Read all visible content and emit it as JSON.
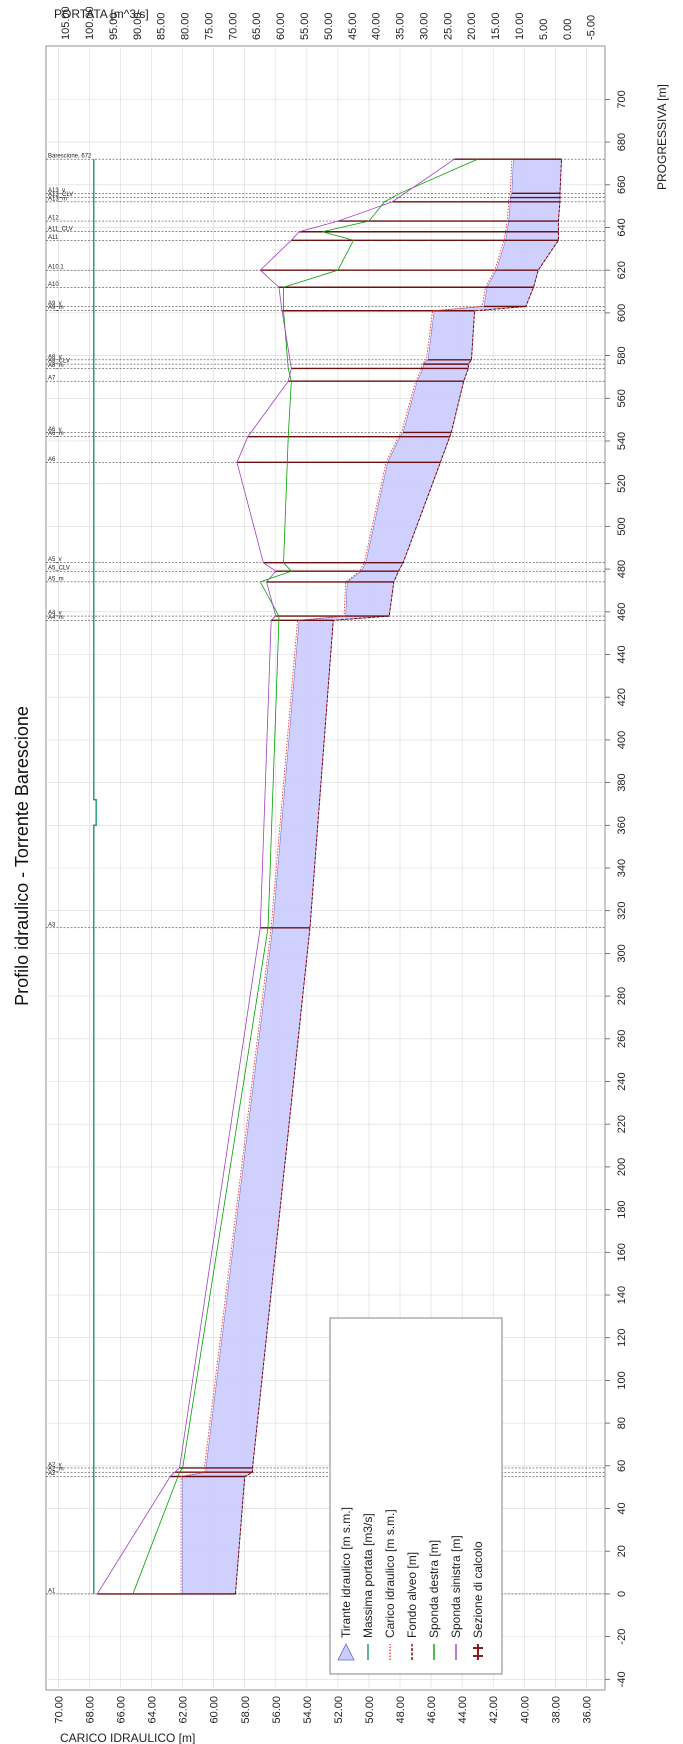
{
  "chart_data": {
    "type": "line",
    "title": "Profilo idraulico - Torrente Barescione",
    "xlabel": "PROGRESSIVA [m]",
    "ylabel": "CARICO IDRAULICO [m]",
    "y2label": "PORTATA [m^3/s]",
    "xlim": [
      -45,
      725
    ],
    "ylim": [
      34.8,
      70.8
    ],
    "y2lim": [
      -8,
      109
    ],
    "x_ticks": [
      "-40",
      "-20",
      "0",
      "20",
      "40",
      "60",
      "80",
      "100",
      "120",
      "140",
      "160",
      "180",
      "200",
      "220",
      "240",
      "260",
      "280",
      "300",
      "320",
      "340",
      "360",
      "380",
      "400",
      "420",
      "440",
      "460",
      "480",
      "500",
      "520",
      "540",
      "560",
      "580",
      "600",
      "620",
      "640",
      "660",
      "680",
      "700"
    ],
    "y_ticks": [
      "36.00",
      "38.00",
      "40.00",
      "42.00",
      "44.00",
      "46.00",
      "48.00",
      "50.00",
      "52.00",
      "54.00",
      "56.00",
      "58.00",
      "60.00",
      "62.00",
      "64.00",
      "66.00",
      "68.00",
      "70.00"
    ],
    "y2_ticks": [
      "-5.00",
      "0.00",
      "5.00",
      "10.00",
      "15.00",
      "20.00",
      "25.00",
      "30.00",
      "35.00",
      "40.00",
      "45.00",
      "50.00",
      "55.00",
      "60.00",
      "65.00",
      "70.00",
      "75.00",
      "80.00",
      "85.00",
      "90.00",
      "95.00",
      "100.00",
      "105.00"
    ],
    "sections": [
      {
        "label": "A1",
        "x": 0
      },
      {
        "label": "A2",
        "x": 55
      },
      {
        "label": "A2_m",
        "x": 57
      },
      {
        "label": "A2_v",
        "x": 59
      },
      {
        "label": "A3",
        "x": 312
      },
      {
        "label": "A4_m",
        "x": 456
      },
      {
        "label": "A4_v",
        "x": 458
      },
      {
        "label": "A5_m",
        "x": 474
      },
      {
        "label": "A5_CLV",
        "x": 479
      },
      {
        "label": "A5_v",
        "x": 483
      },
      {
        "label": "A6",
        "x": 530
      },
      {
        "label": "A6_m",
        "x": 542
      },
      {
        "label": "A6_v",
        "x": 544
      },
      {
        "label": "A7",
        "x": 568
      },
      {
        "label": "A8_m",
        "x": 574
      },
      {
        "label": "A8_CLV",
        "x": 576
      },
      {
        "label": "A8_v",
        "x": 578
      },
      {
        "label": "A9_m",
        "x": 601
      },
      {
        "label": "A9_v",
        "x": 603
      },
      {
        "label": "A10",
        "x": 612
      },
      {
        "label": "A10.1",
        "x": 620
      },
      {
        "label": "A11",
        "x": 634
      },
      {
        "label": "A11_CLV",
        "x": 638
      },
      {
        "label": "A12",
        "x": 643
      },
      {
        "label": "A13_m",
        "x": 652
      },
      {
        "label": "A13_CLV",
        "x": 654
      },
      {
        "label": "A13_v",
        "x": 656
      },
      {
        "label": "Barescione, 672",
        "x": 672
      }
    ],
    "series": [
      {
        "name": "Tirante idraulico [m s.m.]",
        "color": "#aaaaff",
        "points": [
          [
            0,
            62
          ],
          [
            55,
            62
          ],
          [
            57,
            60.5
          ],
          [
            59,
            60.5
          ],
          [
            312,
            56.2
          ],
          [
            456,
            54.5
          ],
          [
            458,
            51.5
          ],
          [
            474,
            51.4
          ],
          [
            479,
            50.5
          ],
          [
            483,
            50.2
          ],
          [
            530,
            48.8
          ],
          [
            542,
            48
          ],
          [
            544,
            47.8
          ],
          [
            568,
            46.9
          ],
          [
            574,
            46.5
          ],
          [
            576,
            46.5
          ],
          [
            578,
            46.2
          ],
          [
            601,
            45.8
          ],
          [
            603,
            42.6
          ],
          [
            612,
            42.4
          ],
          [
            620,
            41.8
          ],
          [
            634,
            41.2
          ],
          [
            638,
            41.1
          ],
          [
            643,
            41
          ],
          [
            652,
            40.9
          ],
          [
            654,
            40.9
          ],
          [
            656,
            40.8
          ],
          [
            672,
            40.7
          ]
        ]
      },
      {
        "name": "Massima portata [m3/s]",
        "color": "#1a9a6c",
        "points": [
          [
            0,
            99
          ],
          [
            360,
            99
          ],
          [
            360,
            98.5
          ],
          [
            372,
            98.5
          ],
          [
            372,
            99
          ],
          [
            672,
            99
          ]
        ]
      },
      {
        "name": "Carico idraulico [m s.m.]",
        "color": "#ff3333",
        "points": [
          [
            0,
            62.1
          ],
          [
            55,
            62.1
          ],
          [
            57,
            60.6
          ],
          [
            59,
            60.6
          ],
          [
            312,
            56.3
          ],
          [
            456,
            54.6
          ],
          [
            458,
            51.6
          ],
          [
            474,
            51.5
          ],
          [
            479,
            50.6
          ],
          [
            483,
            50.3
          ],
          [
            530,
            48.9
          ],
          [
            542,
            48.1
          ],
          [
            544,
            47.9
          ],
          [
            568,
            47
          ],
          [
            574,
            46.6
          ],
          [
            576,
            46.6
          ],
          [
            578,
            46.3
          ],
          [
            601,
            45.9
          ],
          [
            603,
            42.7
          ],
          [
            612,
            42.5
          ],
          [
            620,
            41.9
          ],
          [
            634,
            41.3
          ],
          [
            638,
            41.2
          ],
          [
            643,
            41.1
          ],
          [
            652,
            41
          ],
          [
            654,
            41
          ],
          [
            656,
            40.9
          ],
          [
            672,
            40.8
          ]
        ]
      },
      {
        "name": "Fondo alveo [m]",
        "color": "#8b0000",
        "points": [
          [
            0,
            58.6
          ],
          [
            55,
            58
          ],
          [
            57,
            57.5
          ],
          [
            59,
            57.5
          ],
          [
            312,
            53.8
          ],
          [
            456,
            52.3
          ],
          [
            458,
            48.7
          ],
          [
            474,
            48.4
          ],
          [
            479,
            48.1
          ],
          [
            483,
            47.8
          ],
          [
            530,
            45.4
          ],
          [
            542,
            44.8
          ],
          [
            544,
            44.7
          ],
          [
            568,
            43.9
          ],
          [
            574,
            43.6
          ],
          [
            576,
            43.6
          ],
          [
            578,
            43.4
          ],
          [
            601,
            43.2
          ],
          [
            603,
            39.9
          ],
          [
            612,
            39.4
          ],
          [
            620,
            39.1
          ],
          [
            634,
            37.8
          ],
          [
            638,
            37.8
          ],
          [
            643,
            37.8
          ],
          [
            652,
            37.7
          ],
          [
            654,
            37.7
          ],
          [
            656,
            37.7
          ],
          [
            672,
            37.6
          ]
        ]
      },
      {
        "name": "Sponda destra [m]",
        "color": "#00a000",
        "points": [
          [
            0,
            65.2
          ],
          [
            55,
            62.3
          ],
          [
            57,
            62.2
          ],
          [
            59,
            62
          ],
          [
            312,
            56.5
          ],
          [
            456,
            55.8
          ],
          [
            458,
            55.8
          ],
          [
            474,
            57
          ],
          [
            479,
            55
          ],
          [
            483,
            55.5
          ],
          [
            542,
            55.2
          ],
          [
            568,
            55
          ],
          [
            574,
            55.2
          ],
          [
            601,
            55.5
          ],
          [
            612,
            55.5
          ],
          [
            620,
            52
          ],
          [
            634,
            51
          ],
          [
            638,
            53
          ],
          [
            643,
            50
          ],
          [
            652,
            49
          ],
          [
            656,
            48
          ],
          [
            672,
            43
          ]
        ]
      },
      {
        "name": "Sponda sinistra [m]",
        "color": "#a040c0",
        "points": [
          [
            0,
            67.5
          ],
          [
            55,
            62.8
          ],
          [
            57,
            62.5
          ],
          [
            59,
            62.2
          ],
          [
            312,
            57
          ],
          [
            456,
            56.3
          ],
          [
            458,
            56
          ],
          [
            474,
            56.6
          ],
          [
            479,
            56
          ],
          [
            483,
            56.8
          ],
          [
            530,
            58.5
          ],
          [
            542,
            57.8
          ],
          [
            568,
            55.2
          ],
          [
            574,
            55
          ],
          [
            601,
            55.6
          ],
          [
            612,
            55.8
          ],
          [
            620,
            57
          ],
          [
            634,
            55
          ],
          [
            638,
            54.5
          ],
          [
            643,
            52
          ],
          [
            652,
            48.5
          ],
          [
            672,
            44.5
          ]
        ]
      },
      {
        "name": "Sezione di calcolo",
        "color": "#8b1a1a",
        "points": []
      }
    ],
    "legend": {
      "position": "bottom-left",
      "entries": [
        "Tirante idraulico [m s.m.]",
        "Massima portata [m3/s]",
        "Carico idraulico [m s.m.]",
        "Fondo alveo [m]",
        "Sponda destra [m]",
        "Sponda sinistra [m]",
        "Sezione di calcolo"
      ]
    },
    "grid": true
  }
}
